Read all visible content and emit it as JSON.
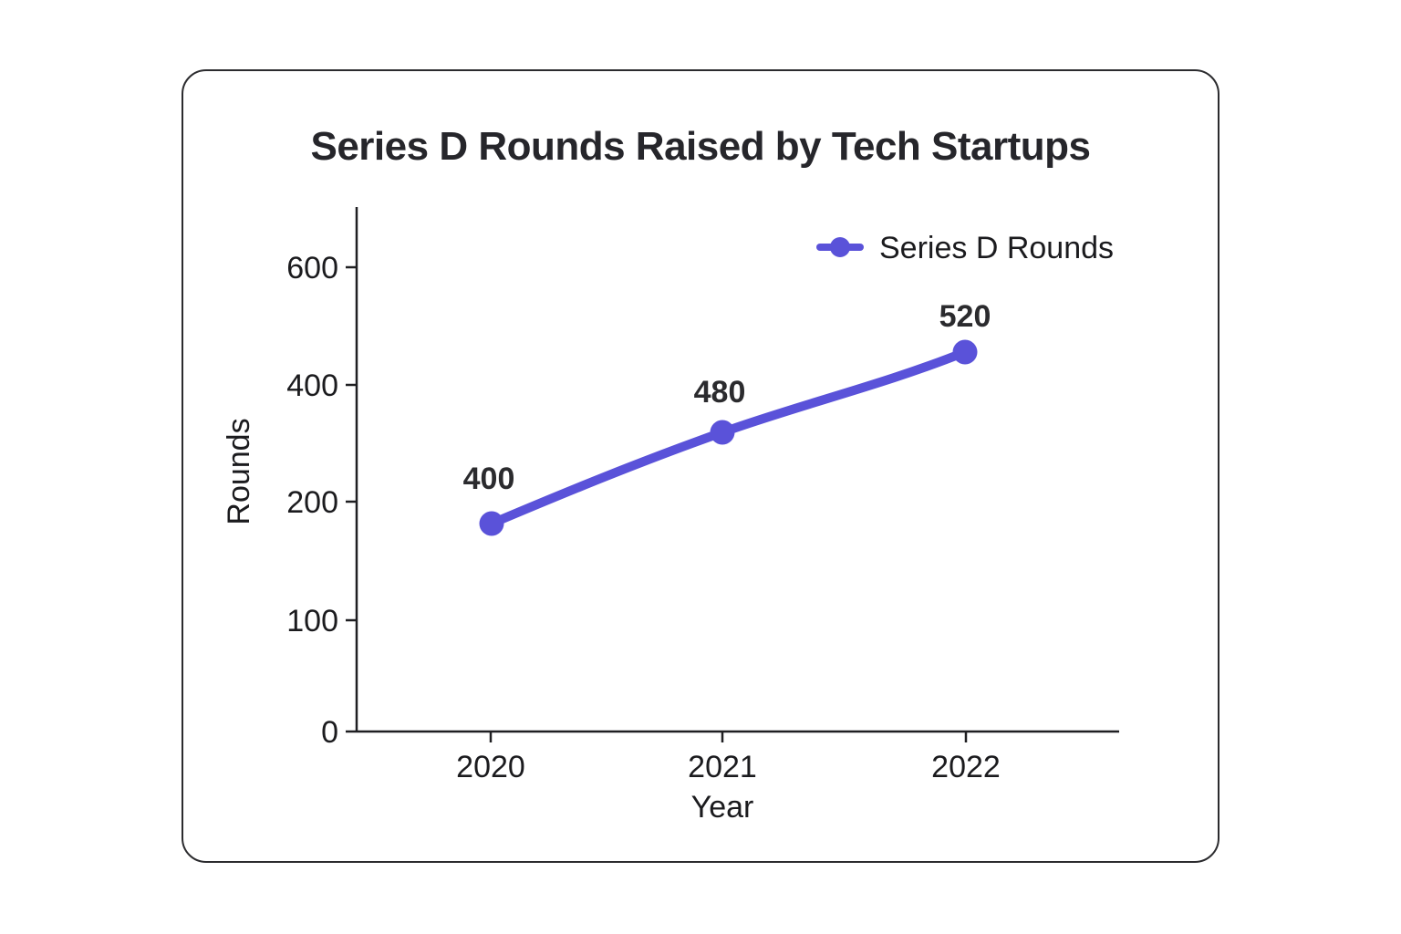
{
  "chart_data": {
    "type": "line",
    "title": "Series D Rounds Raised by Tech Startups",
    "xlabel": "Year",
    "ylabel": "Rounds",
    "categories": [
      "2020",
      "2021",
      "2022"
    ],
    "series": [
      {
        "name": "Series D Rounds",
        "values": [
          400,
          480,
          520
        ],
        "color": "#5a52d9"
      }
    ],
    "data_labels": [
      "400",
      "480",
      "520"
    ],
    "y_ticks": [
      "0",
      "100",
      "200",
      "400",
      "600"
    ],
    "ylim": [
      0,
      650
    ],
    "grid": false,
    "legend": {
      "position": "top-right",
      "label": "Series D Rounds"
    },
    "colors": {
      "line": "#5a52d9",
      "axis": "#1f1f22",
      "tick_text": "#1b1b1e",
      "data_label_text": "#2b2b2e",
      "title_text": "#26262b"
    }
  }
}
